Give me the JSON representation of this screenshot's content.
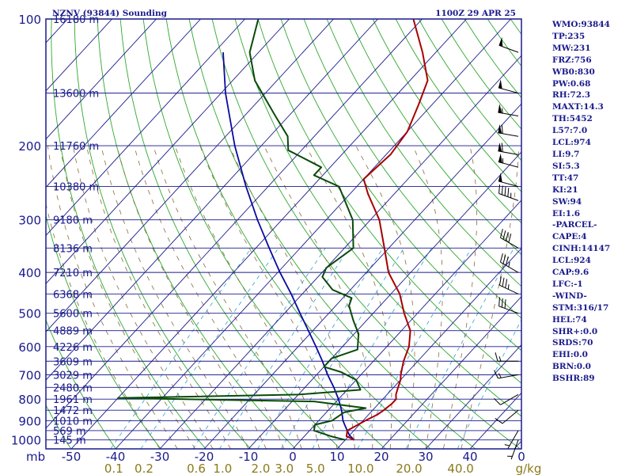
{
  "title_left": "NZNV (93844) Sounding",
  "title_right": "1100Z 29 APR 25",
  "stats": [
    "WMO:93844",
    "TP:235",
    "MW:231",
    "FRZ:756",
    "WB0:830",
    "PW:0.68",
    "RH:72.3",
    "MAXT:14.3",
    "TH:5452",
    "L57:7.0",
    "LCL:974",
    "LI:9.7",
    "SI:5.3",
    "TT:47",
    "KI:21",
    "SW:94",
    "EI:1.6",
    "-PARCEL-",
    "CAPE:4",
    "CINH:14147",
    "LCL:924",
    "CAP:9.6",
    "LFC:-1",
    "-WIND-",
    "STM:316/17",
    "HEL:74",
    "SHR+:0.0",
    "SRDS:70",
    "EHI:0.0",
    "BRN:0.0",
    "BSHR:89"
  ],
  "colors": {
    "frame": "#1a1a8c",
    "isobar": "#1a1a8c",
    "isotherm": "#1a1a8c",
    "dry_adiabat": "#2fa82f",
    "moist_adiabat": "#8a6a3a",
    "mixing_ratio": "#2f9fd0",
    "parcel": "#0a0aa0",
    "temperature": "#a80000",
    "dewpoint": "#0a4a0a",
    "wind": "#000000",
    "mixing_label": "#8a7a1a"
  },
  "chart_data": {
    "type": "skew-t log-p",
    "x_axis_label": "mb",
    "pressure_ticks": [
      100,
      200,
      300,
      400,
      500,
      600,
      700,
      800,
      900,
      1000
    ],
    "temperature_ticks": [
      "-50",
      "-40",
      "-30",
      "-20",
      "-10",
      "0",
      "10",
      "20",
      "30",
      "40",
      "0"
    ],
    "mixing_ratio_ticks": [
      {
        "label": "0.1",
        "g": 0.1
      },
      {
        "label": "0.2",
        "g": 0.2
      },
      {
        "label": "0.6",
        "g": 0.6
      },
      {
        "label": "1.0",
        "g": 1.0
      },
      {
        "label": "2.0",
        "g": 2.0
      },
      {
        "label": "3.0",
        "g": 3.0
      },
      {
        "label": "5.0",
        "g": 5.0
      },
      {
        "label": "10.0",
        "g": 10.0
      },
      {
        "label": "20.0",
        "g": 20.0
      },
      {
        "label": "40.0",
        "g": 40.0
      }
    ],
    "mixing_ratio_unit": "g/kg",
    "heights": [
      {
        "p": 100,
        "label": "16180 m"
      },
      {
        "p": 150,
        "label": "13600 m"
      },
      {
        "p": 200,
        "label": "11760 m"
      },
      {
        "p": 250,
        "label": "10380 m"
      },
      {
        "p": 300,
        "label": "9180 m"
      },
      {
        "p": 350,
        "label": "8136 m"
      },
      {
        "p": 400,
        "label": "7210 m"
      },
      {
        "p": 450,
        "label": "6368 m"
      },
      {
        "p": 500,
        "label": "5600 m"
      },
      {
        "p": 550,
        "label": "4889 m"
      },
      {
        "p": 600,
        "label": "4226 m"
      },
      {
        "p": 650,
        "label": "3609 m"
      },
      {
        "p": 700,
        "label": "3029 m"
      },
      {
        "p": 750,
        "label": "2480 m"
      },
      {
        "p": 800,
        "label": "1961 m"
      },
      {
        "p": 850,
        "label": "1472 m"
      },
      {
        "p": 900,
        "label": "1010 m"
      },
      {
        "p": 950,
        "label": "569 m"
      },
      {
        "p": 1000,
        "label": "145 m"
      }
    ],
    "temperature": [
      [
        1000,
        12.0
      ],
      [
        980,
        9.5
      ],
      [
        950,
        8.5
      ],
      [
        925,
        9.5
      ],
      [
        900,
        10.5
      ],
      [
        870,
        12.0
      ],
      [
        850,
        12.5
      ],
      [
        820,
        13.0
      ],
      [
        800,
        13.0
      ],
      [
        780,
        12.0
      ],
      [
        750,
        11.0
      ],
      [
        720,
        10.0
      ],
      [
        700,
        9.0
      ],
      [
        650,
        6.8
      ],
      [
        600,
        5.0
      ],
      [
        550,
        2.0
      ],
      [
        500,
        -3.0
      ],
      [
        450,
        -8.0
      ],
      [
        400,
        -15.0
      ],
      [
        350,
        -21.0
      ],
      [
        300,
        -28.0
      ],
      [
        260,
        -36.0
      ],
      [
        240,
        -40.0
      ],
      [
        210,
        -39.0
      ],
      [
        185,
        -40.0
      ],
      [
        160,
        -43.0
      ],
      [
        140,
        -46.0
      ],
      [
        120,
        -53.0
      ],
      [
        100,
        -62.0
      ]
    ],
    "dewpoint": [
      [
        1000,
        10.0
      ],
      [
        980,
        6.0
      ],
      [
        950,
        1.0
      ],
      [
        920,
        0.0
      ],
      [
        900,
        3.0
      ],
      [
        860,
        4.0
      ],
      [
        840,
        8.0
      ],
      [
        810,
        -5.0
      ],
      [
        795,
        -50.0
      ],
      [
        780,
        -10.0
      ],
      [
        760,
        3.0
      ],
      [
        720,
        0.0
      ],
      [
        690,
        -5.0
      ],
      [
        670,
        -10.0
      ],
      [
        640,
        -10.0
      ],
      [
        610,
        -6.0
      ],
      [
        560,
        -9.0
      ],
      [
        520,
        -13.0
      ],
      [
        480,
        -17.0
      ],
      [
        460,
        -18.0
      ],
      [
        440,
        -24.0
      ],
      [
        410,
        -29.0
      ],
      [
        390,
        -30.0
      ],
      [
        350,
        -28.0
      ],
      [
        300,
        -34.0
      ],
      [
        250,
        -44.0
      ],
      [
        235,
        -52.0
      ],
      [
        225,
        -52.0
      ],
      [
        205,
        -63.0
      ],
      [
        190,
        -66.0
      ],
      [
        170,
        -73.0
      ],
      [
        140,
        -85.0
      ],
      [
        120,
        -92.0
      ],
      [
        100,
        -97.0
      ]
    ],
    "parcel": [
      [
        1000,
        12.0
      ],
      [
        975,
        10.0
      ],
      [
        950,
        8.5
      ],
      [
        925,
        7.0
      ],
      [
        900,
        5.5
      ],
      [
        850,
        3.0
      ],
      [
        800,
        0.0
      ],
      [
        750,
        -3.5
      ],
      [
        700,
        -7.5
      ],
      [
        650,
        -11.5
      ],
      [
        600,
        -16.0
      ],
      [
        550,
        -21.0
      ],
      [
        500,
        -26.5
      ],
      [
        450,
        -32.5
      ],
      [
        400,
        -39.5
      ],
      [
        350,
        -47.0
      ],
      [
        300,
        -55.5
      ],
      [
        250,
        -65.0
      ],
      [
        200,
        -76.0
      ],
      [
        150,
        -89.0
      ],
      [
        120,
        -98.0
      ]
    ],
    "wind_barbs": [
      {
        "p": 1000,
        "dir": 200,
        "kt": 5
      },
      {
        "p": 950,
        "dir": 210,
        "kt": 5
      },
      {
        "p": 850,
        "dir": 230,
        "kt": 10
      },
      {
        "p": 780,
        "dir": 240,
        "kt": 10
      },
      {
        "p": 700,
        "dir": 260,
        "kt": 15
      },
      {
        "p": 650,
        "dir": 270,
        "kt": 15
      },
      {
        "p": 500,
        "dir": 290,
        "kt": 30
      },
      {
        "p": 450,
        "dir": 295,
        "kt": 35
      },
      {
        "p": 400,
        "dir": 300,
        "kt": 35
      },
      {
        "p": 350,
        "dir": 300,
        "kt": 40
      },
      {
        "p": 270,
        "dir": 290,
        "kt": 45
      },
      {
        "p": 250,
        "dir": 285,
        "kt": 50
      },
      {
        "p": 225,
        "dir": 285,
        "kt": 55
      },
      {
        "p": 210,
        "dir": 280,
        "kt": 60
      },
      {
        "p": 190,
        "dir": 280,
        "kt": 60
      },
      {
        "p": 170,
        "dir": 280,
        "kt": 55
      },
      {
        "p": 150,
        "dir": 285,
        "kt": 50
      },
      {
        "p": 120,
        "dir": 290,
        "kt": 50
      }
    ]
  }
}
